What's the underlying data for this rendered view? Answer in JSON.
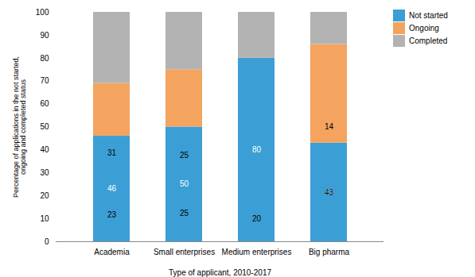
{
  "chart_data": {
    "type": "bar",
    "stacked": true,
    "categories": [
      "Academia",
      "Small enterprises",
      "Medium enterprises",
      "Big pharma"
    ],
    "series": [
      {
        "name": "Not started",
        "color": "#3b9fd5",
        "values": [
          46,
          50,
          80,
          43
        ]
      },
      {
        "name": "Ongoing",
        "color": "#f4a45f",
        "values": [
          23,
          25,
          0,
          43
        ]
      },
      {
        "name": "Completed",
        "color": "#b3b3b3",
        "values": [
          31,
          25,
          20,
          14
        ]
      }
    ],
    "ylabel": "Percentage of applications in the not started,\nongoing and completed status",
    "xlabel": "Type of applicant, 2010-2017",
    "ylim": [
      0,
      100
    ],
    "yticks": [
      0,
      10,
      20,
      30,
      40,
      50,
      60,
      70,
      80,
      90,
      100
    ],
    "grid": false,
    "legend": "upper right",
    "data_labels": true
  }
}
